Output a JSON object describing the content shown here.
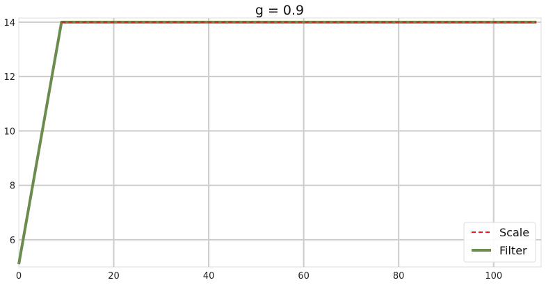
{
  "chart_data": {
    "type": "line",
    "title": "g = 0.9",
    "xlabel": "",
    "ylabel": "",
    "xlim": [
      0,
      110
    ],
    "ylim": [
      5,
      14.15
    ],
    "xticks": [
      0,
      20,
      40,
      60,
      80,
      100
    ],
    "yticks": [
      6,
      8,
      10,
      12,
      14
    ],
    "grid": true,
    "legend": "lower-right",
    "series": [
      {
        "name": "Scale",
        "style": "dashed",
        "color": "#e41a1c",
        "x": [
          9,
          109
        ],
        "y": [
          14,
          14
        ]
      },
      {
        "name": "Filter",
        "style": "solid",
        "color": "#6a8c4c",
        "x": [
          0,
          9,
          109
        ],
        "y": [
          5.1,
          14,
          14
        ]
      }
    ]
  }
}
